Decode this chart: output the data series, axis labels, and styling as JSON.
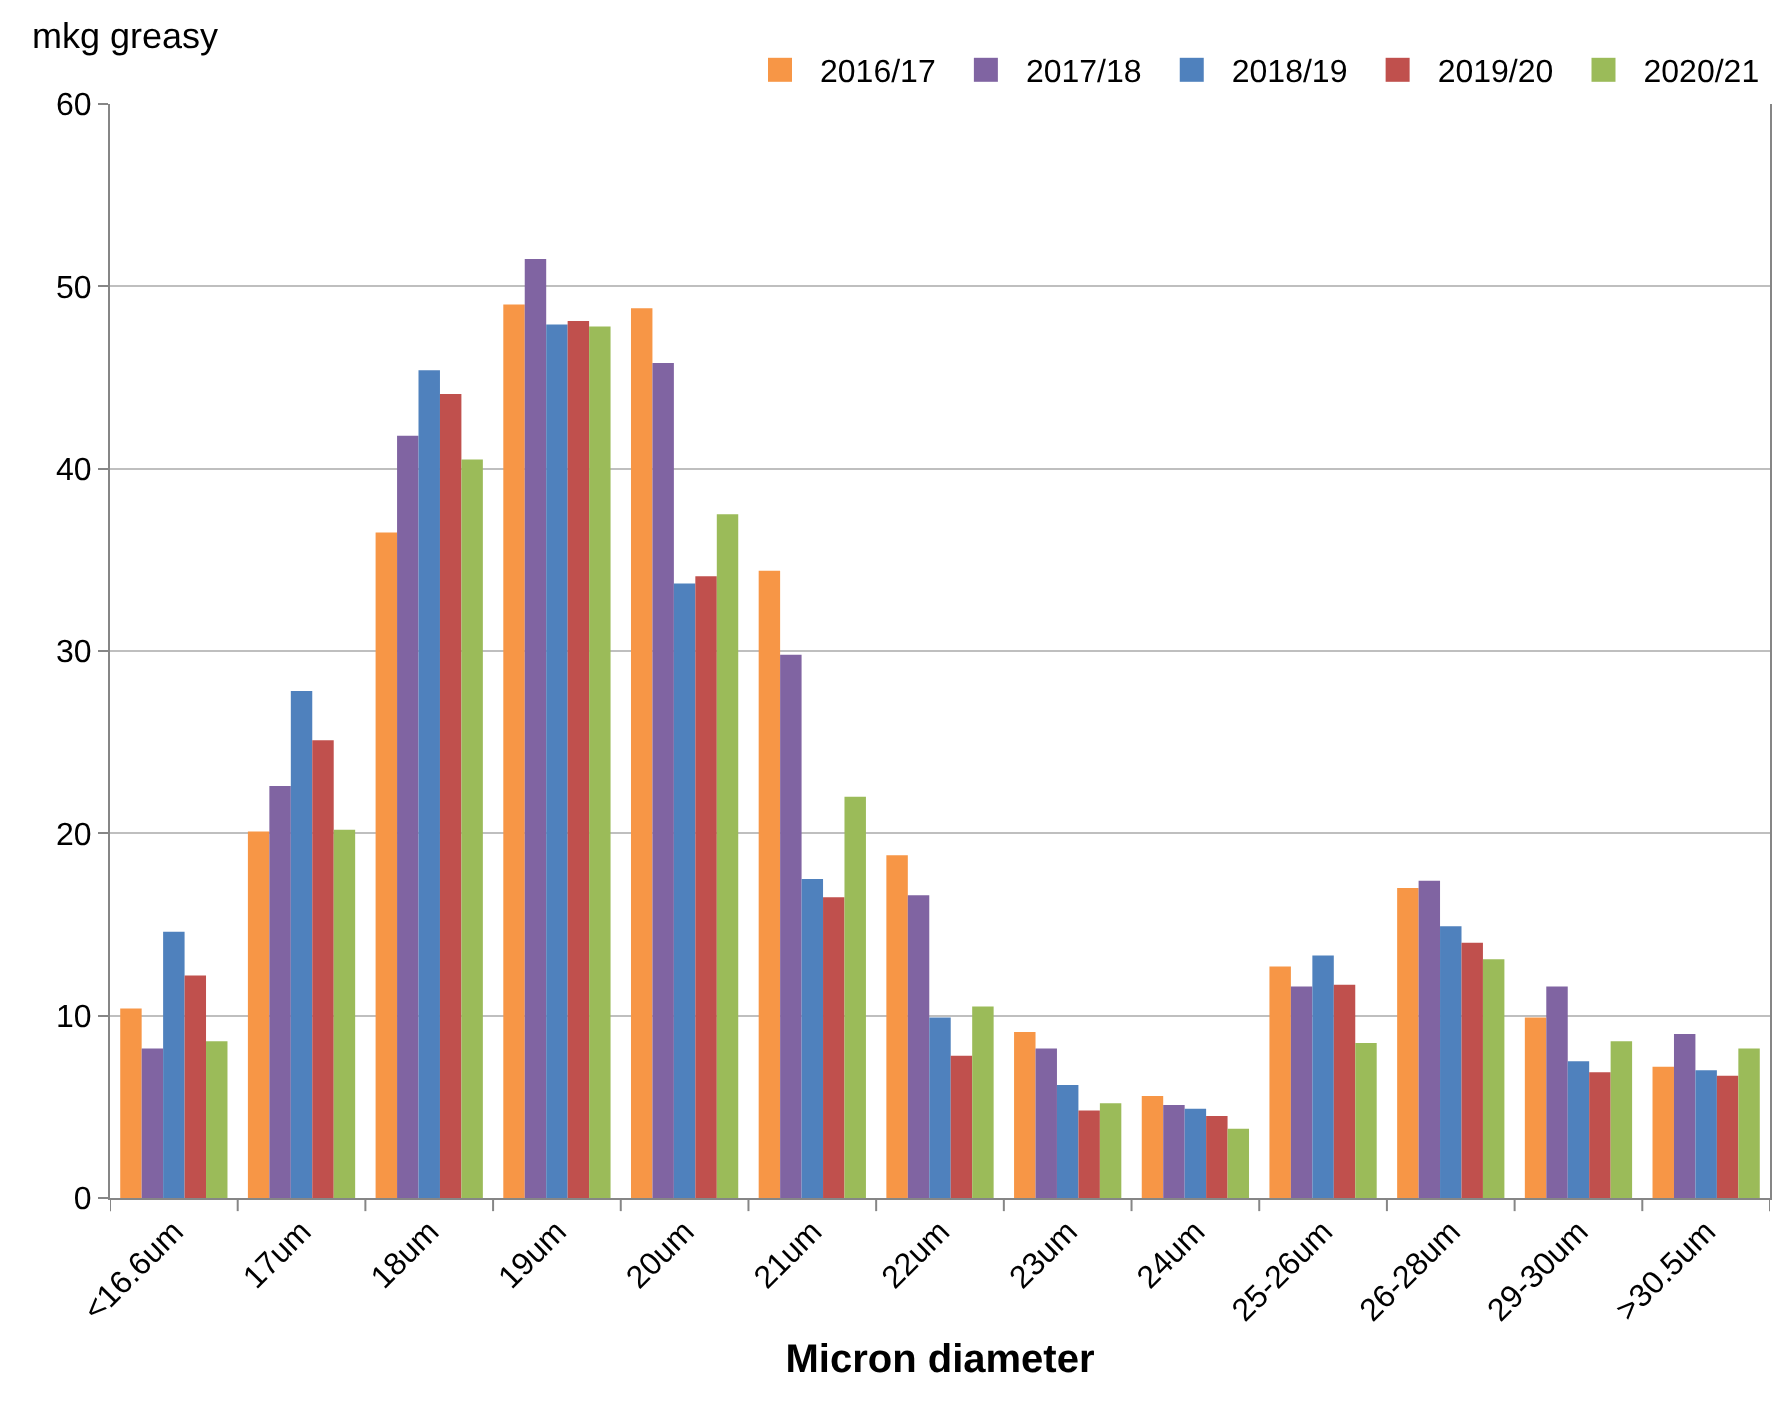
{
  "chart_data": {
    "type": "bar",
    "xlabel": "Micron diameter",
    "ylabel": "mkg greasy",
    "categories": [
      "<16.6um",
      "17um",
      "18um",
      "19um",
      "20um",
      "21um",
      "22um",
      "23um",
      "24um",
      "25-26um",
      "26-28um",
      "29-30um",
      ">30.5um"
    ],
    "series": [
      {
        "name": "2016/17",
        "color": "#f79646",
        "values": [
          10.4,
          20.1,
          36.5,
          49.0,
          48.8,
          34.4,
          18.8,
          9.1,
          5.6,
          12.7,
          17.0,
          9.9,
          7.2
        ]
      },
      {
        "name": "2017/18",
        "color": "#8064a2",
        "values": [
          8.2,
          22.6,
          41.8,
          51.5,
          45.8,
          29.8,
          16.6,
          8.2,
          5.1,
          11.6,
          17.4,
          11.6,
          9.0
        ]
      },
      {
        "name": "2018/19",
        "color": "#4f81bd",
        "values": [
          14.6,
          27.8,
          45.4,
          47.9,
          33.7,
          17.5,
          9.9,
          6.2,
          4.9,
          13.3,
          14.9,
          7.5,
          7.0
        ]
      },
      {
        "name": "2019/20",
        "color": "#c0504d",
        "values": [
          12.2,
          25.1,
          44.1,
          48.1,
          34.1,
          16.5,
          7.8,
          4.8,
          4.5,
          11.7,
          14.0,
          6.9,
          6.7
        ]
      },
      {
        "name": "2020/21",
        "color": "#9bbb59",
        "values": [
          8.6,
          20.2,
          40.5,
          47.8,
          37.5,
          22.0,
          10.5,
          5.2,
          3.8,
          8.5,
          13.1,
          8.6,
          8.2
        ]
      }
    ],
    "ylim": [
      0,
      60
    ],
    "yticks": [
      0,
      10,
      20,
      30,
      40,
      50,
      60
    ],
    "grid": "y",
    "legend": "top right"
  }
}
